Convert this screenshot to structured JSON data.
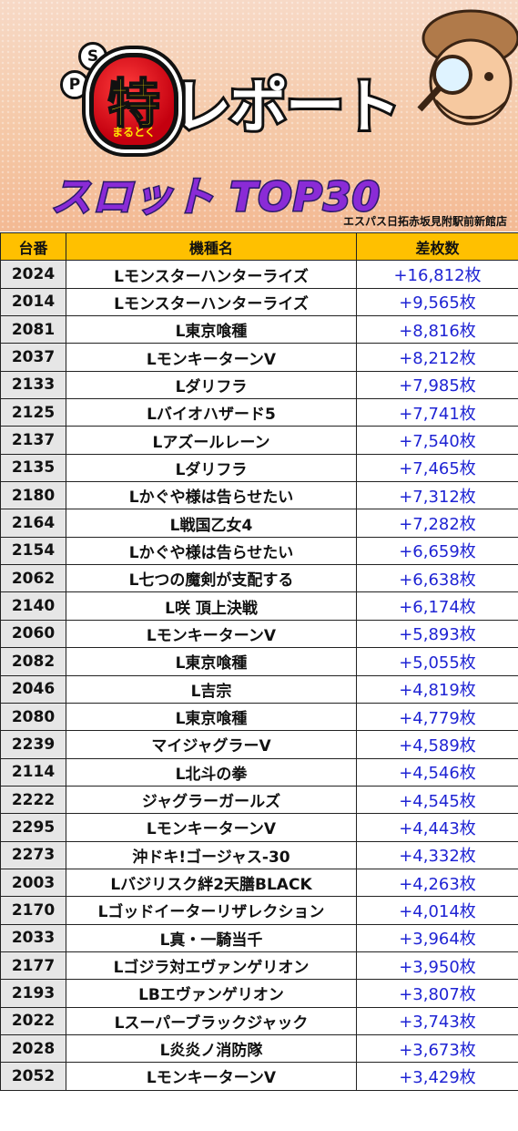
{
  "banner": {
    "badge_s": "S",
    "badge_p": "P",
    "logo_char": "特",
    "logo_sub": "まるとく",
    "title": "レポート",
    "subtitle": "スロット TOP30",
    "store": "エスパス日拓赤坂見附駅前新館店",
    "colors": {
      "title_purple": "#8a2bd6",
      "logo_red": "#c4000f",
      "logo_yellow": "#ffe400"
    }
  },
  "table": {
    "headers": [
      "台番",
      "機種名",
      "差枚数"
    ],
    "header_color": "#ffc000",
    "value_color": "#1f24d4",
    "rows": [
      {
        "no": "2024",
        "name": "Lモンスターハンターライズ",
        "diff": "+16,812枚"
      },
      {
        "no": "2014",
        "name": "Lモンスターハンターライズ",
        "diff": "+9,565枚"
      },
      {
        "no": "2081",
        "name": "L東京喰種",
        "diff": "+8,816枚"
      },
      {
        "no": "2037",
        "name": "LモンキーターンV",
        "diff": "+8,212枚"
      },
      {
        "no": "2133",
        "name": "Lダリフラ",
        "diff": "+7,985枚"
      },
      {
        "no": "2125",
        "name": "Lバイオハザード5",
        "diff": "+7,741枚"
      },
      {
        "no": "2137",
        "name": "Lアズールレーン",
        "diff": "+7,540枚"
      },
      {
        "no": "2135",
        "name": "Lダリフラ",
        "diff": "+7,465枚"
      },
      {
        "no": "2180",
        "name": "Lかぐや様は告らせたい",
        "diff": "+7,312枚"
      },
      {
        "no": "2164",
        "name": "L戦国乙女4",
        "diff": "+7,282枚"
      },
      {
        "no": "2154",
        "name": "Lかぐや様は告らせたい",
        "diff": "+6,659枚"
      },
      {
        "no": "2062",
        "name": "L七つの魔剣が支配する",
        "diff": "+6,638枚"
      },
      {
        "no": "2140",
        "name": "L咲 頂上決戦",
        "diff": "+6,174枚"
      },
      {
        "no": "2060",
        "name": "LモンキーターンV",
        "diff": "+5,893枚"
      },
      {
        "no": "2082",
        "name": "L東京喰種",
        "diff": "+5,055枚"
      },
      {
        "no": "2046",
        "name": "L吉宗",
        "diff": "+4,819枚"
      },
      {
        "no": "2080",
        "name": "L東京喰種",
        "diff": "+4,779枚"
      },
      {
        "no": "2239",
        "name": "マイジャグラーV",
        "diff": "+4,589枚"
      },
      {
        "no": "2114",
        "name": "L北斗の拳",
        "diff": "+4,546枚"
      },
      {
        "no": "2222",
        "name": "ジャグラーガールズ",
        "diff": "+4,545枚"
      },
      {
        "no": "2295",
        "name": "LモンキーターンV",
        "diff": "+4,443枚"
      },
      {
        "no": "2273",
        "name": "沖ドキ!ゴージャス-30",
        "diff": "+4,332枚"
      },
      {
        "no": "2003",
        "name": "Lバジリスク絆2天膳BLACK",
        "diff": "+4,263枚"
      },
      {
        "no": "2170",
        "name": "Lゴッドイーターリザレクション",
        "diff": "+4,014枚"
      },
      {
        "no": "2033",
        "name": "L真・一騎当千",
        "diff": "+3,964枚"
      },
      {
        "no": "2177",
        "name": "Lゴジラ対エヴァンゲリオン",
        "diff": "+3,950枚"
      },
      {
        "no": "2193",
        "name": "LBエヴァンゲリオン",
        "diff": "+3,807枚"
      },
      {
        "no": "2022",
        "name": "Lスーパーブラックジャック",
        "diff": "+3,743枚"
      },
      {
        "no": "2028",
        "name": "L炎炎ノ消防隊",
        "diff": "+3,673枚"
      },
      {
        "no": "2052",
        "name": "LモンキーターンV",
        "diff": "+3,429枚"
      }
    ]
  }
}
